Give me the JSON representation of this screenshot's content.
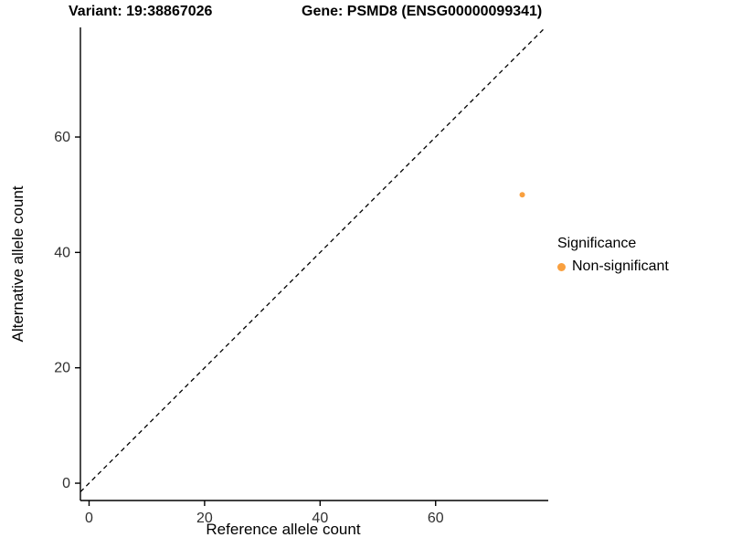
{
  "header": {
    "title_left": "Variant: 19:38867026",
    "title_right": "Gene: PSMD8 (ENSG00000099341)"
  },
  "chart_data": {
    "type": "scatter",
    "xlabel": "Reference allele count",
    "ylabel": "Alternative allele count",
    "xlim": [
      -1.5,
      79.5
    ],
    "ylim": [
      -3,
      79
    ],
    "xticks": [
      0,
      20,
      40,
      60
    ],
    "yticks": [
      0,
      20,
      40,
      60
    ],
    "grid": false,
    "identity_line": {
      "style": "dashed",
      "slope": 1,
      "intercept": 0,
      "color": "#000000"
    },
    "points": [
      {
        "x": 75,
        "y": 50,
        "series": "Non-significant"
      }
    ],
    "series_colors": {
      "Non-significant": "#F9A03F"
    },
    "legend": {
      "title": "Significance",
      "position": "right",
      "entries": [
        {
          "label": "Non-significant",
          "color": "#F9A03F"
        }
      ]
    }
  }
}
